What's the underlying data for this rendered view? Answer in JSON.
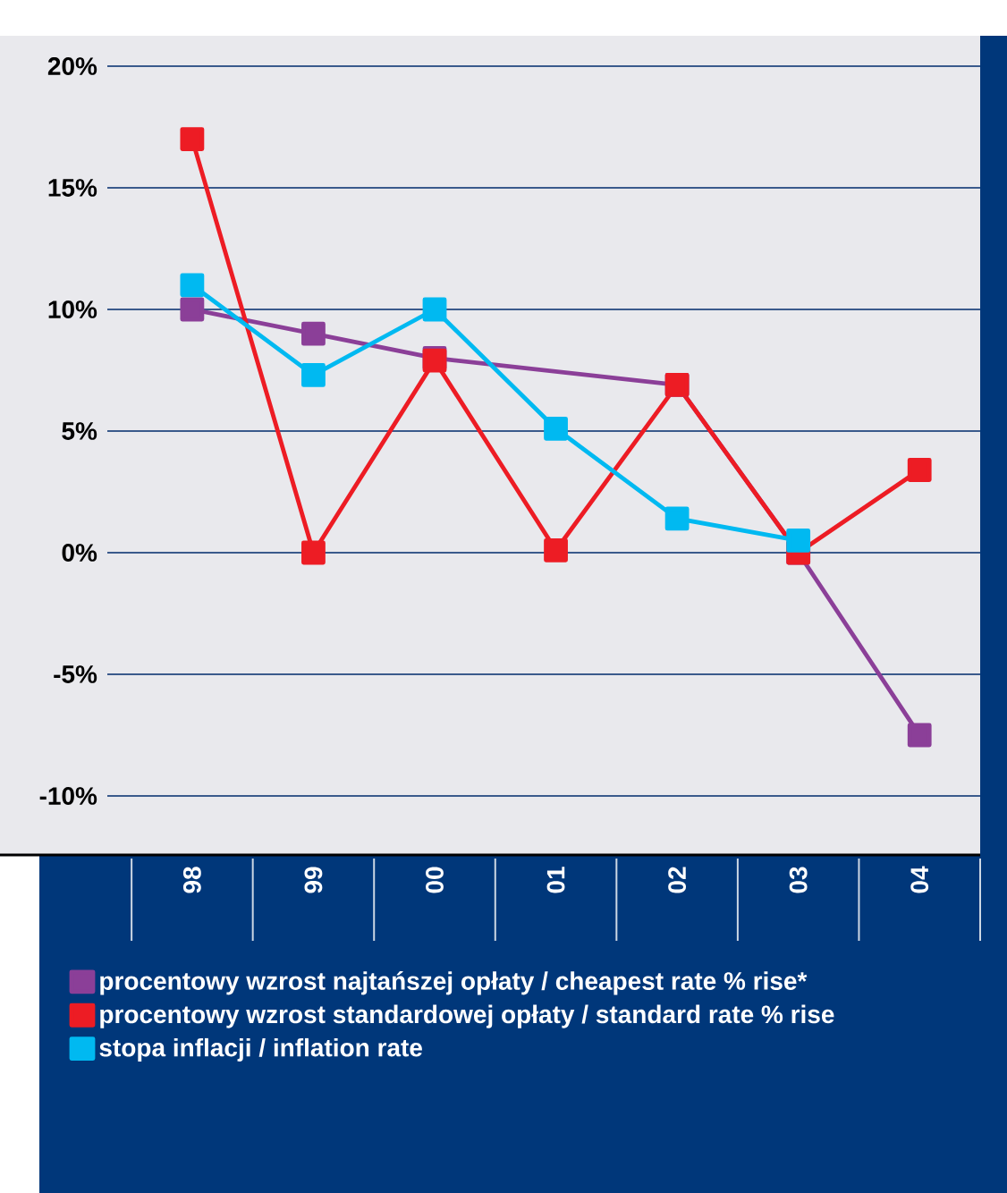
{
  "chart_data": {
    "type": "line",
    "categories": [
      "98",
      "99",
      "00",
      "01",
      "02",
      "03",
      "04"
    ],
    "series": [
      {
        "name": "procentowy wzrost najtańszej opłaty / cheapest rate % rise*",
        "color": "#8b3f98",
        "values": [
          10,
          9,
          8,
          null,
          6.9,
          0,
          -7.5
        ]
      },
      {
        "name": "procentowy wzrost standardowej opłaty / standard rate % rise",
        "color": "#ed1c24",
        "values": [
          17,
          0,
          7.9,
          0.1,
          6.9,
          0,
          3.4
        ]
      },
      {
        "name": "stopa inflacji / inflation rate",
        "color": "#00b9f1",
        "values": [
          11,
          7.3,
          10,
          5.1,
          1.4,
          0.5,
          null
        ]
      }
    ],
    "ylim": [
      -10,
      20
    ],
    "yticks": [
      {
        "value": -10,
        "label": "-10%"
      },
      {
        "value": -5,
        "label": "-5%"
      },
      {
        "value": 0,
        "label": "0%"
      },
      {
        "value": 5,
        "label": "5%"
      },
      {
        "value": 10,
        "label": "10%"
      },
      {
        "value": 15,
        "label": "15%"
      },
      {
        "value": 20,
        "label": "20%"
      }
    ],
    "grid": "y",
    "legend": "bottom",
    "marker": "square",
    "line_style": "solid"
  }
}
